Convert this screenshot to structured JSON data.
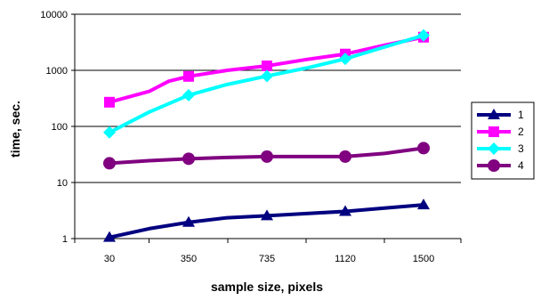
{
  "chart_data": {
    "type": "line",
    "title": "",
    "xlabel": "sample size, pixels",
    "ylabel": "time, sec.",
    "yscale": "log",
    "ylim": [
      1,
      10000
    ],
    "y_ticks": [
      "1",
      "10",
      "100",
      "1000",
      "10000"
    ],
    "x_ticks": [
      "30",
      "350",
      "735",
      "1120",
      "1500"
    ],
    "grid": "horizontal major gridlines",
    "legend_position": "right",
    "series": [
      {
        "name": "1",
        "color": "#000080",
        "marker": "triangle",
        "points": [
          [
            30,
            1.05
          ],
          [
            190,
            1.5
          ],
          [
            350,
            1.95
          ],
          [
            540,
            2.35
          ],
          [
            735,
            2.55
          ],
          [
            930,
            2.8
          ],
          [
            1120,
            3.05
          ],
          [
            1310,
            3.5
          ],
          [
            1500,
            4.0
          ]
        ]
      },
      {
        "name": "2",
        "color": "#ff00ff",
        "marker": "square",
        "points": [
          [
            30,
            270
          ],
          [
            190,
            420
          ],
          [
            270,
            640
          ],
          [
            350,
            780
          ],
          [
            540,
            1000
          ],
          [
            735,
            1200
          ],
          [
            930,
            1560
          ],
          [
            1120,
            1950
          ],
          [
            1310,
            2800
          ],
          [
            1500,
            3900
          ]
        ]
      },
      {
        "name": "3",
        "color": "#00ffff",
        "marker": "diamond",
        "points": [
          [
            30,
            78
          ],
          [
            190,
            180
          ],
          [
            350,
            360
          ],
          [
            540,
            560
          ],
          [
            735,
            790
          ],
          [
            930,
            1100
          ],
          [
            1120,
            1600
          ],
          [
            1310,
            2600
          ],
          [
            1500,
            4200
          ]
        ]
      },
      {
        "name": "4",
        "color": "#800080",
        "marker": "circle",
        "points": [
          [
            30,
            22
          ],
          [
            190,
            24.5
          ],
          [
            350,
            26.5
          ],
          [
            540,
            28
          ],
          [
            735,
            29
          ],
          [
            930,
            29
          ],
          [
            1120,
            29
          ],
          [
            1310,
            33
          ],
          [
            1500,
            41
          ]
        ]
      }
    ]
  }
}
